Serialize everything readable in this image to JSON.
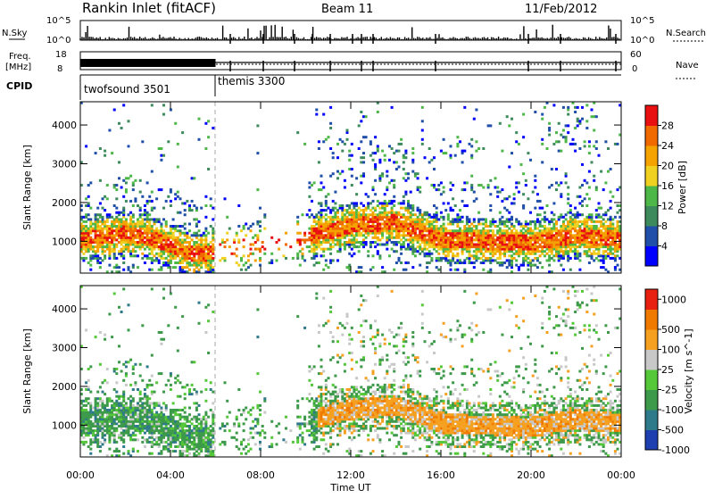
{
  "header": {
    "station": "Rankin Inlet (fitACF)",
    "beam": "Beam 11",
    "date": "11/Feb/2012"
  },
  "summary": {
    "nsky_label": "N.Sky",
    "nsky_ticks": [
      "10^5",
      "10^0"
    ],
    "nsearch_label": "N.Search",
    "nsearch_ticks": [
      "10^5",
      "10^0"
    ],
    "freq_label_1": "Freq.",
    "freq_label_2": "[MHz]",
    "freq_ticks": [
      "18",
      "8"
    ],
    "nave_label": "Nave",
    "nave_ticks": [
      "60",
      "0"
    ],
    "cpid_label": "CPID",
    "cpid_entries": [
      {
        "label": "twofsound 3501",
        "start_hour": 0,
        "end_hour": 6
      },
      {
        "label": "themis 3300",
        "start_hour": 6,
        "end_hour": 24
      }
    ]
  },
  "chart_data": [
    {
      "type": "heatmap",
      "name": "Power",
      "xlabel": "",
      "ylabel": "Slant Range [km]",
      "xlim": [
        0,
        24
      ],
      "ylim": [
        180,
        4600
      ],
      "yticks": [
        1000,
        2000,
        3000,
        4000
      ],
      "colorbar": {
        "label": "Power [dB]",
        "levels": [
          0,
          4,
          8,
          12,
          16,
          20,
          24,
          28,
          32
        ],
        "tick_labels": [
          "4",
          "8",
          "12",
          "16",
          "20",
          "24",
          "28"
        ],
        "colors": [
          "#0000ff",
          "#1f4fa8",
          "#3d8a5c",
          "#4db848",
          "#f0d020",
          "#f5a300",
          "#f06a00",
          "#e81010"
        ]
      },
      "main_band_center_km": [
        [
          0,
          1050
        ],
        [
          1,
          1100
        ],
        [
          2,
          1200
        ],
        [
          3,
          1100
        ],
        [
          4,
          900
        ],
        [
          5,
          650
        ],
        [
          10,
          1100
        ],
        [
          12,
          1400
        ],
        [
          14,
          1500
        ],
        [
          16,
          1050
        ],
        [
          18,
          1000
        ],
        [
          20,
          950
        ],
        [
          22,
          1150
        ],
        [
          24,
          1050
        ]
      ],
      "main_band_power_db": 26
    },
    {
      "type": "heatmap",
      "name": "Velocity",
      "xlabel": "Time UT",
      "ylabel": "Slant Range [km]",
      "xlim": [
        0,
        24
      ],
      "ylim": [
        180,
        4600
      ],
      "xticks": [
        "00:00",
        "04:00",
        "08:00",
        "12:00",
        "16:00",
        "20:00",
        "00:00"
      ],
      "yticks": [
        1000,
        2000,
        3000,
        4000
      ],
      "colorbar": {
        "label": "Velocity [m s^-1]",
        "tick_labels": [
          "1000",
          "500",
          "100",
          "25",
          "-25",
          "-100",
          "-500",
          "-1000"
        ],
        "colors": [
          "#1d3fb0",
          "#2f7a8a",
          "#3d9a4a",
          "#55c83a",
          "#c8c8c8",
          "#f5a020",
          "#f07a00",
          "#e82010"
        ]
      },
      "main_band_center_km": [
        [
          0,
          1050
        ],
        [
          1,
          1100
        ],
        [
          2,
          1200
        ],
        [
          3,
          1100
        ],
        [
          4,
          900
        ],
        [
          5,
          650
        ],
        [
          10,
          1100
        ],
        [
          12,
          1400
        ],
        [
          14,
          1500
        ],
        [
          16,
          1050
        ],
        [
          18,
          1000
        ],
        [
          20,
          950
        ],
        [
          22,
          1150
        ],
        [
          24,
          1050
        ]
      ]
    }
  ]
}
